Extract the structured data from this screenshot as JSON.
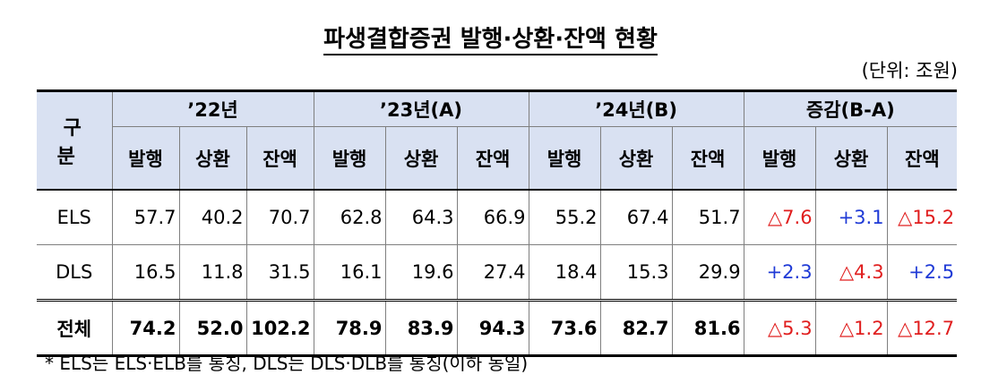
{
  "title": "파생결합증권 발행·상환·잔액 현황",
  "unit": "(단위: 조원)",
  "header": {
    "gubun": "구 분",
    "years": [
      "’22년",
      "’23년(A)",
      "’24년(B)",
      "증감(B-A)"
    ],
    "subcols": [
      "발행",
      "상환",
      "잔액"
    ]
  },
  "rows": [
    {
      "label": "ELS",
      "values": [
        "57.7",
        "40.2",
        "70.7",
        "62.8",
        "64.3",
        "66.9",
        "55.2",
        "67.4",
        "51.7"
      ],
      "changes": [
        "△7.6",
        "+3.1",
        "△15.2"
      ],
      "change_colors": [
        "red",
        "blue",
        "red"
      ]
    },
    {
      "label": "DLS",
      "values": [
        "16.5",
        "11.8",
        "31.5",
        "16.1",
        "19.6",
        "27.4",
        "18.4",
        "15.3",
        "29.9"
      ],
      "changes": [
        "+2.3",
        "△4.3",
        "+2.5"
      ],
      "change_colors": [
        "blue",
        "red",
        "blue"
      ]
    },
    {
      "label": "전체",
      "values": [
        "74.2",
        "52.0",
        "102.2",
        "78.9",
        "83.9",
        "94.3",
        "73.6",
        "82.7",
        "81.6"
      ],
      "changes": [
        "△5.3",
        "△1.2",
        "△12.7"
      ],
      "change_colors": [
        "red",
        "red",
        "red"
      ]
    }
  ],
  "note": "* ELS는 ELS·ELB를 통칭, DLS는 DLS·DLB를 통칭(이하 동일)",
  "colors": {
    "header_bg": "#d9e1f2",
    "increase": "#1f3ad6",
    "decrease": "#e01e1e"
  }
}
